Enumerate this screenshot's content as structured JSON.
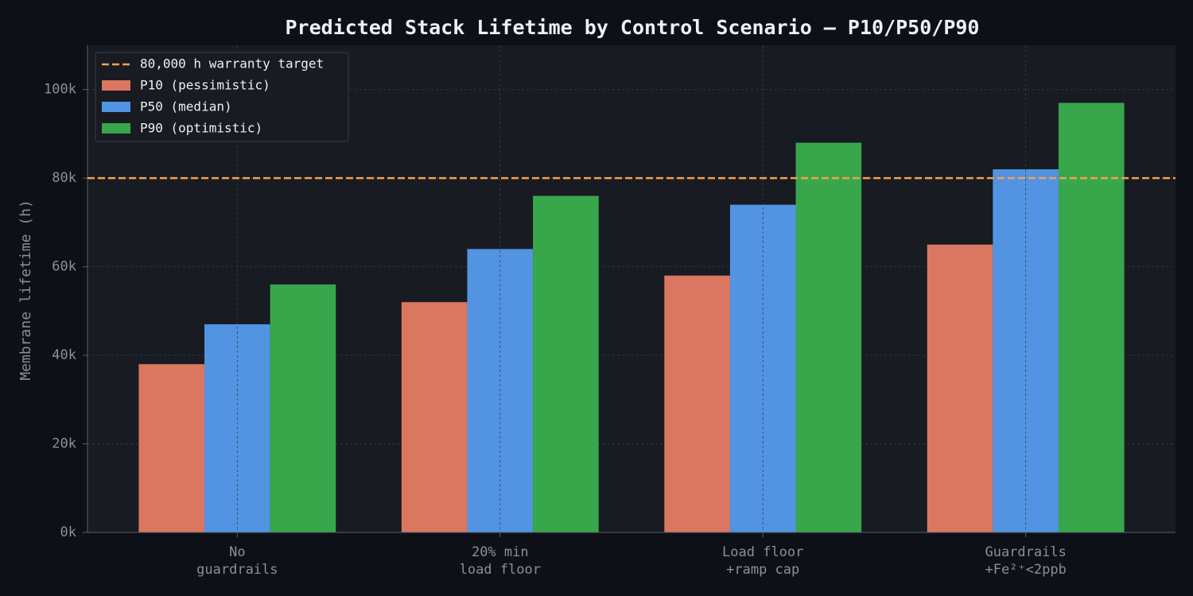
{
  "chart_data": {
    "type": "bar",
    "title": "Predicted Stack Lifetime by Control Scenario — P10/P50/P90",
    "ylabel": "Membrane lifetime (h)",
    "categories": [
      [
        "No",
        "guardrails"
      ],
      [
        "20% min",
        "load floor"
      ],
      [
        "Load floor",
        "+ramp cap"
      ],
      [
        "Guardrails",
        "+Fe²⁺<2ppb"
      ]
    ],
    "series": [
      {
        "name": "P10 (pessimistic)",
        "color": "#db7760",
        "values": [
          38000,
          52000,
          58000,
          65000
        ]
      },
      {
        "name": "P50 (median)",
        "color": "#5294e2",
        "values": [
          47000,
          64000,
          74000,
          82000
        ]
      },
      {
        "name": "P90 (optimistic)",
        "color": "#38a64b",
        "values": [
          56000,
          76000,
          88000,
          97000
        ]
      }
    ],
    "target": {
      "value": 80000,
      "label": "80,000 h warranty target",
      "color": "#f5a04f"
    },
    "ylim": [
      0,
      110000
    ],
    "yticks": [
      {
        "value": 0,
        "label": "0k"
      },
      {
        "value": 20000,
        "label": "20k"
      },
      {
        "value": 40000,
        "label": "40k"
      },
      {
        "value": 60000,
        "label": "60k"
      },
      {
        "value": 80000,
        "label": "80k"
      },
      {
        "value": 100000,
        "label": "100k"
      }
    ],
    "grid": true,
    "legend": "upper left"
  }
}
